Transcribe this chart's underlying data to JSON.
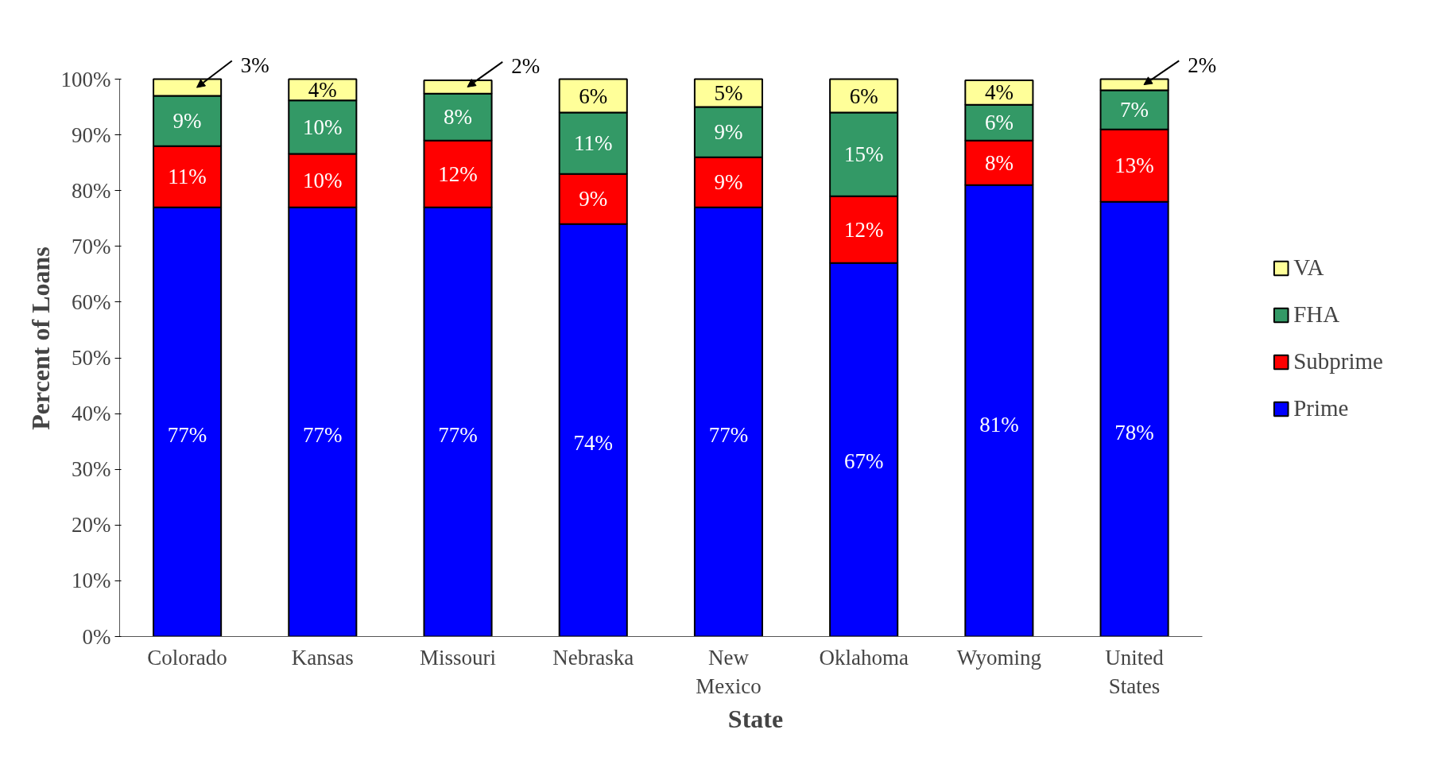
{
  "chart_data": {
    "type": "bar",
    "stacked": true,
    "xlabel": "State",
    "ylabel": "Percent of Loans",
    "categories": [
      "Colorado",
      "Kansas",
      "Missouri",
      "Nebraska",
      "New Mexico",
      "Oklahoma",
      "Wyoming",
      "United States"
    ],
    "series": [
      {
        "name": "Prime",
        "color": "#0000ff",
        "values": [
          77,
          77,
          77,
          74,
          77,
          67,
          81,
          78
        ],
        "value_labels": [
          "77%",
          "77%",
          "77%",
          "74%",
          "77%",
          "67%",
          "81%",
          "78%"
        ]
      },
      {
        "name": "Subprime",
        "color": "#ff0000",
        "values": [
          11,
          9.6,
          12,
          9,
          9,
          12,
          8,
          13
        ],
        "value_labels": [
          "11%",
          "10%",
          "12%",
          "9%",
          "9%",
          "12%",
          "8%",
          "13%"
        ]
      },
      {
        "name": "FHA",
        "color": "#339966",
        "values": [
          9,
          9.6,
          8.4,
          11,
          9,
          15,
          6.4,
          7
        ],
        "value_labels": [
          "9%",
          "10%",
          "8%",
          "11%",
          "9%",
          "15%",
          "6%",
          "7%"
        ]
      },
      {
        "name": "VA",
        "color": "#ffff99",
        "values": [
          3,
          3.8,
          2.4,
          6,
          5,
          6,
          4.4,
          2
        ],
        "value_labels": [
          "3%",
          "4%",
          "2%",
          "6%",
          "5%",
          "6%",
          "4%",
          "2%"
        ]
      }
    ],
    "ylim": [
      0,
      100
    ],
    "yticks": [
      {
        "value": 0,
        "label": "0%"
      },
      {
        "value": 10,
        "label": "10%"
      },
      {
        "value": 20,
        "label": "20%"
      },
      {
        "value": 30,
        "label": "30%"
      },
      {
        "value": 40,
        "label": "40%"
      },
      {
        "value": 50,
        "label": "50%"
      },
      {
        "value": 60,
        "label": "60%"
      },
      {
        "value": 70,
        "label": "70%"
      },
      {
        "value": 80,
        "label": "80%"
      },
      {
        "value": 90,
        "label": "90%"
      },
      {
        "value": 100,
        "label": "100%"
      }
    ],
    "legend": "right",
    "grid": false
  }
}
